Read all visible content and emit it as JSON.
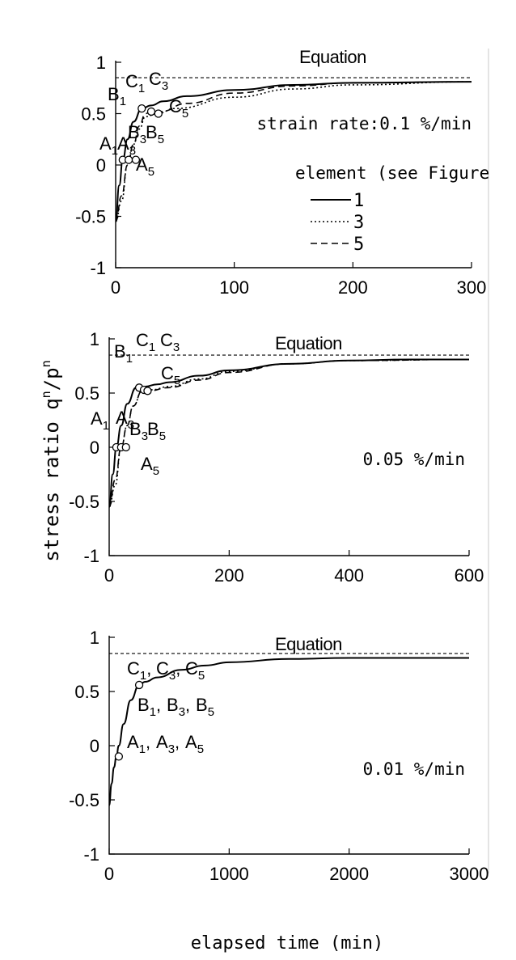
{
  "ylabel_text": "stress ratio q",
  "ylabel_sup1": "n",
  "ylabel_mid": "/p",
  "ylabel_sup2": "n",
  "xlabel": "elapsed time (min)",
  "chart_data": [
    {
      "type": "line",
      "equation_label": "Equation",
      "equation_value": 0.85,
      "rate_label": "strain rate:0.1 %/min",
      "ylim": [
        -1,
        1
      ],
      "xlim": [
        0,
        300
      ],
      "yticks": [
        1,
        0.5,
        0,
        -0.5,
        -1
      ],
      "ytick_labels": [
        "1",
        "0.5",
        "0",
        "-0.5",
        "-1"
      ],
      "xticks": [
        0,
        100,
        200,
        300
      ],
      "xtick_labels": [
        "0",
        "100",
        "200",
        "300"
      ],
      "legend_title": "element (see Figure",
      "legend_placement": "right-middle",
      "series": [
        {
          "name": "1",
          "style": "solid",
          "x": [
            0,
            3,
            6,
            10,
            15,
            22,
            30,
            40,
            60,
            100,
            150,
            200,
            300
          ],
          "y": [
            -0.55,
            -0.2,
            0.05,
            0.25,
            0.42,
            0.55,
            0.58,
            0.62,
            0.67,
            0.73,
            0.78,
            0.8,
            0.81
          ]
        },
        {
          "name": "3",
          "style": "dotted",
          "x": [
            0,
            5,
            10,
            15,
            20,
            25,
            35,
            50,
            100,
            150,
            200,
            300
          ],
          "y": [
            -0.55,
            -0.35,
            0.0,
            0.2,
            0.35,
            0.47,
            0.5,
            0.55,
            0.66,
            0.74,
            0.78,
            0.81
          ]
        },
        {
          "name": "5",
          "style": "dashed",
          "x": [
            0,
            5,
            10,
            15,
            20,
            25,
            30,
            38,
            60,
            100,
            150,
            200,
            300
          ],
          "y": [
            -0.55,
            -0.3,
            0.0,
            0.2,
            0.38,
            0.5,
            0.52,
            0.52,
            0.6,
            0.7,
            0.77,
            0.8,
            0.81
          ]
        }
      ],
      "markers": [
        {
          "x": 6,
          "y": 0.05
        },
        {
          "x": 11,
          "y": 0.05
        },
        {
          "x": 17,
          "y": 0.05
        },
        {
          "x": 22,
          "y": 0.55
        },
        {
          "x": 30,
          "y": 0.52
        },
        {
          "x": 36,
          "y": 0.5
        }
      ],
      "point_labels": [
        {
          "text": "A",
          "sub": "1",
          "tx": 123,
          "ty": 185
        },
        {
          "text": "A",
          "sub": "3",
          "tx": 145,
          "ty": 185
        },
        {
          "text": "A",
          "sub": "5",
          "tx": 168,
          "ty": 211
        },
        {
          "text": "B",
          "sub": "1",
          "tx": 133,
          "ty": 124
        },
        {
          "text": "B",
          "sub": "3",
          "tx": 158,
          "ty": 171
        },
        {
          "text": "B",
          "sub": "5",
          "tx": 180,
          "ty": 171
        },
        {
          "text": "C",
          "sub": "1",
          "tx": 155,
          "ty": 108
        },
        {
          "text": "C",
          "sub": "3",
          "tx": 184,
          "ty": 105
        },
        {
          "text": "C",
          "sub": "5",
          "tx": 209,
          "ty": 139
        }
      ]
    },
    {
      "type": "line",
      "equation_label": "Equation",
      "equation_value": 0.85,
      "rate_label": "0.05 %/min",
      "ylim": [
        -1,
        1
      ],
      "xlim": [
        0,
        600
      ],
      "yticks": [
        1,
        0.5,
        0,
        -0.5,
        -1
      ],
      "ytick_labels": [
        "1",
        "0.5",
        "0",
        "-0.5",
        "-1"
      ],
      "xticks": [
        0,
        200,
        400,
        600
      ],
      "xtick_labels": [
        "0",
        "200",
        "400",
        "600"
      ],
      "series": [
        {
          "name": "1",
          "style": "solid",
          "x": [
            0,
            6,
            12,
            20,
            30,
            45,
            50,
            60,
            80,
            100,
            150,
            200,
            300,
            400,
            500,
            600
          ],
          "y": [
            -0.55,
            -0.25,
            0.0,
            0.2,
            0.4,
            0.55,
            0.55,
            0.56,
            0.58,
            0.6,
            0.66,
            0.71,
            0.77,
            0.8,
            0.81,
            0.81
          ]
        },
        {
          "name": "3",
          "style": "dotted",
          "x": [
            0,
            10,
            20,
            30,
            40,
            55,
            70,
            100,
            150,
            200,
            300,
            400,
            600
          ],
          "y": [
            -0.55,
            -0.35,
            0.0,
            0.2,
            0.38,
            0.52,
            0.53,
            0.56,
            0.63,
            0.7,
            0.77,
            0.8,
            0.81
          ]
        },
        {
          "name": "5",
          "style": "dashed",
          "x": [
            0,
            10,
            20,
            30,
            40,
            55,
            65,
            100,
            150,
            200,
            300,
            400,
            600
          ],
          "y": [
            -0.55,
            -0.3,
            0.0,
            0.2,
            0.38,
            0.52,
            0.52,
            0.55,
            0.62,
            0.69,
            0.77,
            0.8,
            0.81
          ]
        }
      ],
      "markers": [
        {
          "x": 12,
          "y": 0.0
        },
        {
          "x": 20,
          "y": 0.0
        },
        {
          "x": 28,
          "y": 0.0
        },
        {
          "x": 50,
          "y": 0.55
        },
        {
          "x": 58,
          "y": 0.53
        },
        {
          "x": 64,
          "y": 0.52
        }
      ],
      "point_labels": [
        {
          "text": "A",
          "sub": "1",
          "tx": 112,
          "ty": 525
        },
        {
          "text": "A",
          "sub": "3",
          "tx": 143,
          "ty": 524
        },
        {
          "text": "A",
          "sub": "5",
          "tx": 174,
          "ty": 581
        },
        {
          "text": "B",
          "sub": "1",
          "tx": 141,
          "ty": 442
        },
        {
          "text": "B",
          "sub": "3",
          "tx": 160,
          "ty": 538
        },
        {
          "text": "B",
          "sub": "5",
          "tx": 182,
          "ty": 538
        },
        {
          "text": "C",
          "sub": "1",
          "tx": 168,
          "ty": 428
        },
        {
          "text": "C",
          "sub": "3",
          "tx": 198,
          "ty": 428
        },
        {
          "text": "C",
          "sub": "5",
          "tx": 199,
          "ty": 469
        }
      ]
    },
    {
      "type": "line",
      "equation_label": "Equation",
      "equation_value": 0.85,
      "rate_label": "0.01 %/min",
      "ylim": [
        -1,
        1
      ],
      "xlim": [
        0,
        3000
      ],
      "yticks": [
        1,
        0.5,
        0,
        -0.5,
        -1
      ],
      "ytick_labels": [
        "1",
        "0.5",
        "0",
        "-0.5",
        "-1"
      ],
      "xticks": [
        0,
        1000,
        2000,
        3000
      ],
      "xtick_labels": [
        "0",
        "1000",
        "2000",
        "3000"
      ],
      "series": [
        {
          "name": "1",
          "style": "solid",
          "x": [
            0,
            20,
            40,
            60,
            80,
            120,
            180,
            250,
            300,
            400,
            600,
            800,
            1000,
            1500,
            2000,
            2500,
            3000
          ],
          "y": [
            -0.55,
            -0.35,
            -0.2,
            -0.1,
            0.0,
            0.2,
            0.42,
            0.56,
            0.59,
            0.63,
            0.7,
            0.74,
            0.77,
            0.8,
            0.81,
            0.81,
            0.81
          ]
        }
      ],
      "markers": [
        {
          "x": 80,
          "y": -0.1
        },
        {
          "x": 250,
          "y": 0.56
        }
      ],
      "point_labels": [
        {
          "text": "C",
          "sub": "1",
          "tx": 157,
          "ty": 834,
          "suffix": ","
        },
        {
          "text": "C",
          "sub": "3",
          "tx": 193,
          "ty": 834,
          "suffix": ","
        },
        {
          "text": "C",
          "sub": "5",
          "tx": 229,
          "ty": 834,
          "suffix": ""
        },
        {
          "text": "B",
          "sub": "1",
          "tx": 170,
          "ty": 879,
          "suffix": ","
        },
        {
          "text": "B",
          "sub": "3",
          "tx": 206,
          "ty": 879,
          "suffix": ","
        },
        {
          "text": "B",
          "sub": "5",
          "tx": 242,
          "ty": 879,
          "suffix": ""
        },
        {
          "text": "A",
          "sub": "1",
          "tx": 157,
          "ty": 925,
          "suffix": ","
        },
        {
          "text": "A",
          "sub": "3",
          "tx": 193,
          "ty": 925,
          "suffix": ","
        },
        {
          "text": "A",
          "sub": "5",
          "tx": 229,
          "ty": 925,
          "suffix": ""
        }
      ]
    }
  ]
}
